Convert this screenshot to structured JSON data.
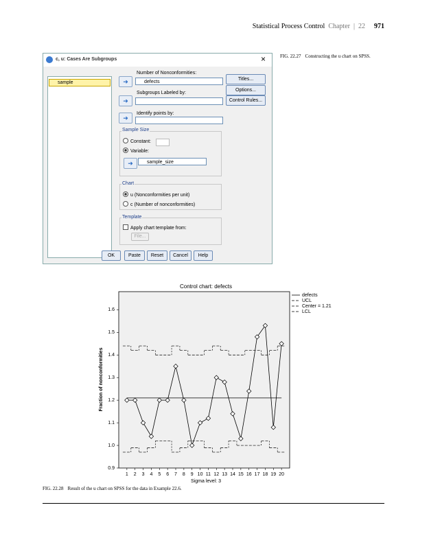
{
  "header": {
    "title": "Statistical Process Control",
    "chapter": "Chapter",
    "chapter_number": "22",
    "page_number": "971"
  },
  "dialog": {
    "title": "c, u: Cases Are Subgroups",
    "variables": [
      "sample"
    ],
    "nonconformities_label": "Number of Nonconformities:",
    "nonconformities_field": "defects",
    "subgroups_label": "Subgroups Labeled by:",
    "identify_label": "Identify points by:",
    "side_buttons": [
      "Titles...",
      "Options...",
      "Control Rules..."
    ],
    "sample_size": {
      "legend": "Sample Size",
      "constant": "Constant:",
      "variable": "Variable:",
      "variable_field": "sample_size"
    },
    "chart": {
      "legend": "Chart",
      "u_option": "u (Nonconformities per unit)",
      "c_option": "c (Number of nonconformities)"
    },
    "template": {
      "legend": "Template",
      "apply": "Apply chart template from:",
      "file_button": "File..."
    },
    "bottom_buttons": [
      "OK",
      "Paste",
      "Reset",
      "Cancel",
      "Help"
    ]
  },
  "captions": [
    {
      "label": "FIG. 22.27",
      "text": "Constructing the u chart on SPSS."
    },
    {
      "label": "FIG. 22.28",
      "text": "Result of the u chart on SPSS for the data in Example 22.6."
    }
  ],
  "chart_data": {
    "type": "line",
    "title": "Control chart: defects",
    "x_label": "Sigma level: 3",
    "y_label": "Fraction of nonconformities",
    "x": [
      1,
      2,
      3,
      4,
      5,
      6,
      7,
      8,
      9,
      10,
      11,
      12,
      13,
      14,
      15,
      16,
      17,
      18,
      19,
      20
    ],
    "xlim": [
      0,
      21
    ],
    "xticks": [
      1,
      2,
      3,
      4,
      5,
      6,
      7,
      8,
      9,
      10,
      11,
      12,
      13,
      14,
      15,
      16,
      17,
      18,
      19,
      20
    ],
    "ylim": [
      0.9,
      1.68
    ],
    "yticks": [
      0.9,
      {
        "value": 1,
        "label": "1.0"
      },
      1.1,
      1.2,
      1.3,
      1.4,
      1.5,
      1.6
    ],
    "center": 1.21,
    "center_label": "Center = 1.21",
    "legend": "top-right-outside",
    "series": [
      {
        "name": "defects",
        "color": "#000000",
        "style": "line",
        "values": [
          1.2,
          1.2,
          1.1,
          1.04,
          1.2,
          1.2,
          1.35,
          1.2,
          1.0,
          1.1,
          1.12,
          1.3,
          1.28,
          1.14,
          1.03,
          1.24,
          1.48,
          1.53,
          1.08,
          1.45
        ]
      },
      {
        "name": "UCL",
        "color": "#000000",
        "style": "step",
        "values": [
          1.44,
          1.42,
          1.44,
          1.42,
          1.4,
          1.4,
          1.44,
          1.42,
          1.4,
          1.4,
          1.42,
          1.44,
          1.42,
          1.4,
          1.4,
          1.42,
          1.42,
          1.4,
          1.42,
          1.44
        ]
      },
      {
        "name": "LCL",
        "color": "#000000",
        "style": "step",
        "values": [
          0.97,
          0.99,
          0.97,
          0.99,
          1.02,
          1.02,
          0.97,
          0.99,
          1.02,
          1.02,
          0.99,
          0.97,
          0.99,
          1.02,
          1.0,
          1.0,
          1.0,
          1.02,
          0.99,
          0.97
        ]
      }
    ]
  }
}
